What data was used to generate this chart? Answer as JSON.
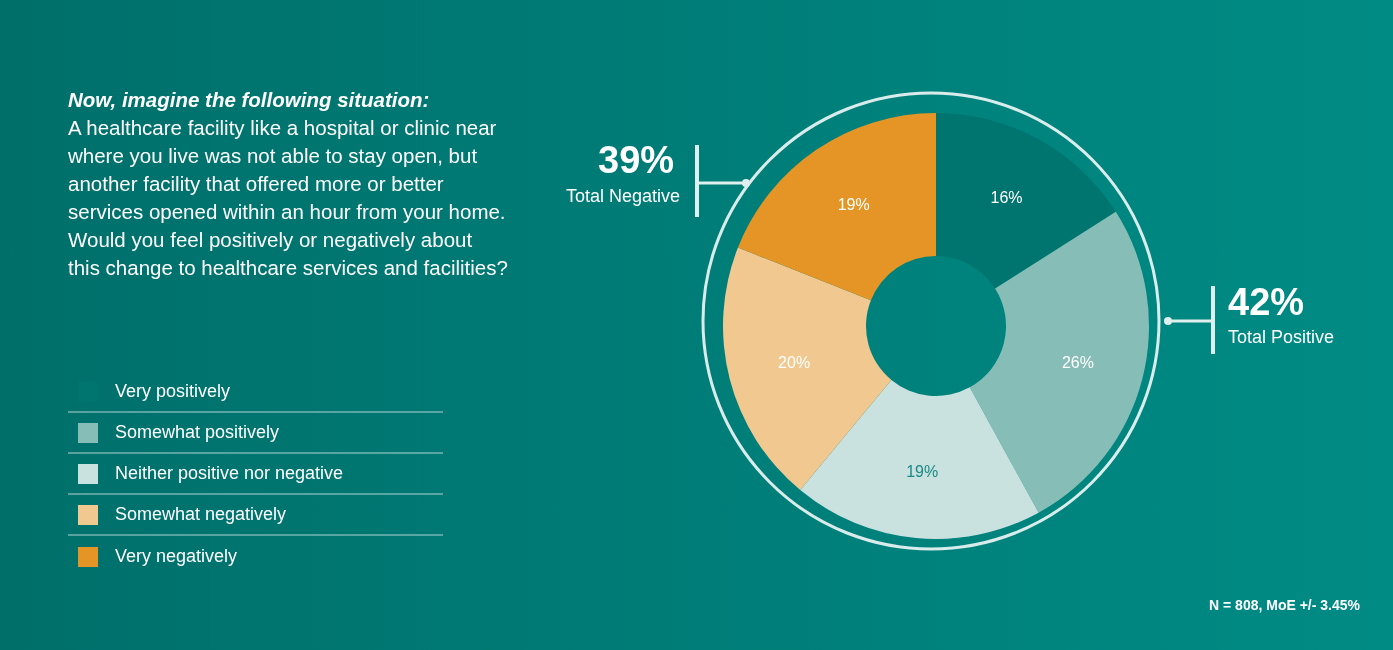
{
  "chart_data": {
    "type": "donut",
    "title": "Now, imagine the following situation:",
    "subtitle": "A healthcare facility like a hospital or clinic near where you live was not able to stay open, but another facility that offered more or better services opened within an hour from your home. Would you feel positively or negatively about this change to healthcare services and facilities?",
    "categories": [
      "Very positively",
      "Somewhat positively",
      "Neither positive nor negative",
      "Somewhat negatively",
      "Very negatively"
    ],
    "values": [
      16,
      26,
      19,
      20,
      19
    ],
    "colors": [
      "#00756f",
      "#86bdb7",
      "#c9e2df",
      "#f1c88f",
      "#e49526"
    ],
    "value_labels": [
      "16%",
      "26%",
      "19%",
      "20%",
      "19%"
    ],
    "legend": "left",
    "annotations": [
      "39%",
      "Total Negative",
      "42%",
      "Total Positive",
      "N = 808, MoE +/- 3.45%"
    ]
  }
}
